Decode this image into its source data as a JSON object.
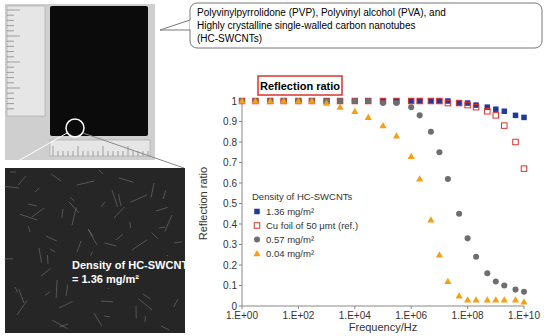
{
  "callout": [
    "Polyvinylpyrrolidone (PVP), Polyvinyl alcohol (PVA), and",
    "Highly crystalline single-walled carbon nanotubes",
    "(HC-SWCNTs)"
  ],
  "sem_label": [
    "Density of HC-SWCNTs",
    "= 1.36 mg/m²"
  ],
  "chart_data": {
    "type": "scatter",
    "title": "Reflection ratio",
    "x_label": "Frequency/Hz",
    "y_label": "Reflection ratio",
    "log": "x",
    "grid": false,
    "legend": "lower left",
    "legend_title": "Density of HC-SWCNTs",
    "x": [
      1,
      3,
      10,
      30,
      100,
      300,
      1000,
      3000,
      10000,
      30000,
      100000,
      300000,
      1000000,
      2000000,
      5000000,
      10000000,
      20000000,
      50000000,
      100000000,
      200000000,
      500000000,
      1000000000,
      2000000000,
      5000000000,
      10000000000
    ],
    "xlim": [
      1,
      10000000000
    ],
    "xticks": [
      {
        "value": 1,
        "label": "1.E+00"
      },
      {
        "value": 100,
        "label": "1.E+02"
      },
      {
        "value": 10000,
        "label": "1.E+04"
      },
      {
        "value": 1000000,
        "label": "1.E+06"
      },
      {
        "value": 100000000,
        "label": "1.E+08"
      },
      {
        "value": 10000000000,
        "label": "1.E+10"
      }
    ],
    "ylim": [
      0,
      1
    ],
    "yticks": [
      0,
      0.1,
      0.2,
      0.3,
      0.4,
      0.5,
      0.6,
      0.7,
      0.8,
      0.9,
      1
    ],
    "series": [
      {
        "name": "1.36 mg/m²",
        "color": "#1f3a9c",
        "marker": "square",
        "values": [
          1,
          1,
          1,
          1,
          1,
          1,
          1,
          1,
          1,
          1,
          1,
          1,
          1,
          1,
          1,
          1,
          1,
          0.99,
          0.99,
          0.98,
          0.97,
          0.96,
          0.95,
          0.93,
          0.92
        ]
      },
      {
        "name": "Cu foil of 50 μmt (ref.)",
        "color": "#d9342b",
        "marker": "square-open",
        "values": [
          1,
          1,
          1,
          1,
          1,
          1,
          1,
          1,
          1,
          1,
          1,
          1,
          1,
          1,
          1,
          1,
          0.99,
          0.99,
          0.98,
          0.97,
          0.95,
          0.93,
          0.88,
          0.8,
          0.67
        ]
      },
      {
        "name": "0.57 mg/m²",
        "color": "#6e6e6e",
        "marker": "circle",
        "values": [
          1,
          1,
          1,
          1,
          1,
          1,
          1,
          1,
          1,
          1,
          0.99,
          0.99,
          0.97,
          0.93,
          0.85,
          0.75,
          0.62,
          0.45,
          0.33,
          0.24,
          0.16,
          0.12,
          0.1,
          0.08,
          0.07
        ]
      },
      {
        "name": "0.04 mg/m²",
        "color": "#f5a014",
        "marker": "triangle",
        "values": [
          1,
          1,
          1,
          1,
          1,
          1,
          0.99,
          0.97,
          0.95,
          0.92,
          0.88,
          0.83,
          0.73,
          0.62,
          0.42,
          0.25,
          0.12,
          0.05,
          0.03,
          0.03,
          0.03,
          0.03,
          0.03,
          0.03,
          0.02
        ]
      }
    ]
  }
}
